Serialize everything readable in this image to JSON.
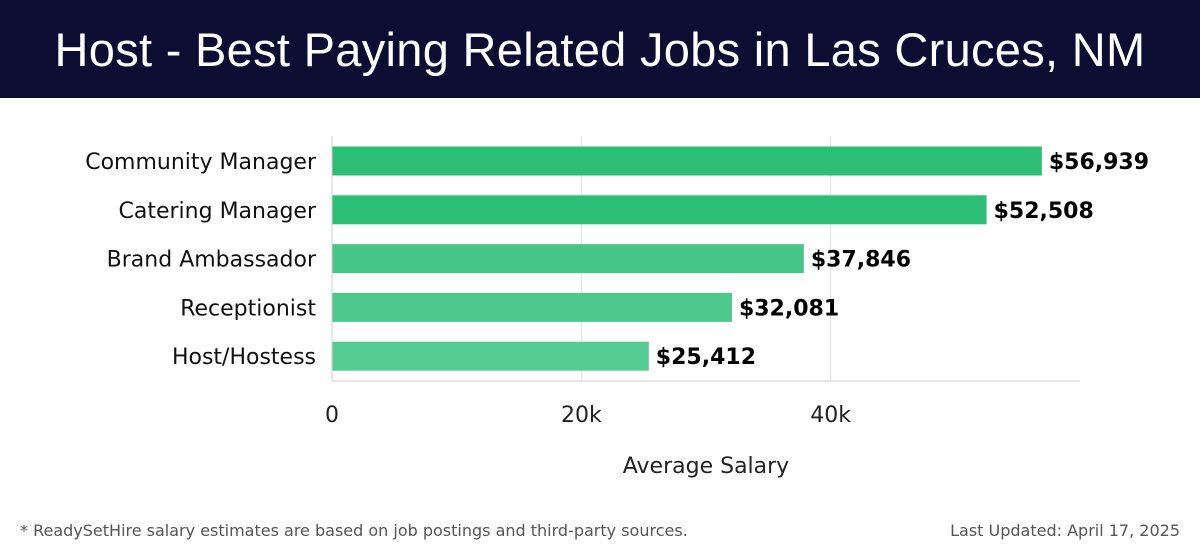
{
  "header": {
    "title": "Host - Best Paying Related Jobs in Las Cruces, NM",
    "background": "#0c0d33"
  },
  "chart_data": {
    "type": "bar",
    "orientation": "horizontal",
    "categories": [
      "Community Manager",
      "Catering Manager",
      "Brand Ambassador",
      "Receptionist",
      "Host/Hostess"
    ],
    "values": [
      56939,
      52508,
      37846,
      32081,
      25412
    ],
    "value_labels": [
      "$56,939",
      "$52,508",
      "$37,846",
      "$32,081",
      "$25,412"
    ],
    "xlabel": "Average Salary",
    "ylabel": "",
    "xlim": [
      0,
      60000
    ],
    "xticks": [
      0,
      20000,
      40000
    ],
    "xtick_labels": [
      "0",
      "20k",
      "40k"
    ],
    "grid": true,
    "bar_colors": [
      "#2ebf77",
      "#2ebf77",
      "#48c68a",
      "#4ec88d",
      "#57cb94"
    ]
  },
  "footer": {
    "note": "* ReadySetHire salary estimates are based on job postings and third-party sources.",
    "updated": "Last Updated: April 17, 2025"
  }
}
